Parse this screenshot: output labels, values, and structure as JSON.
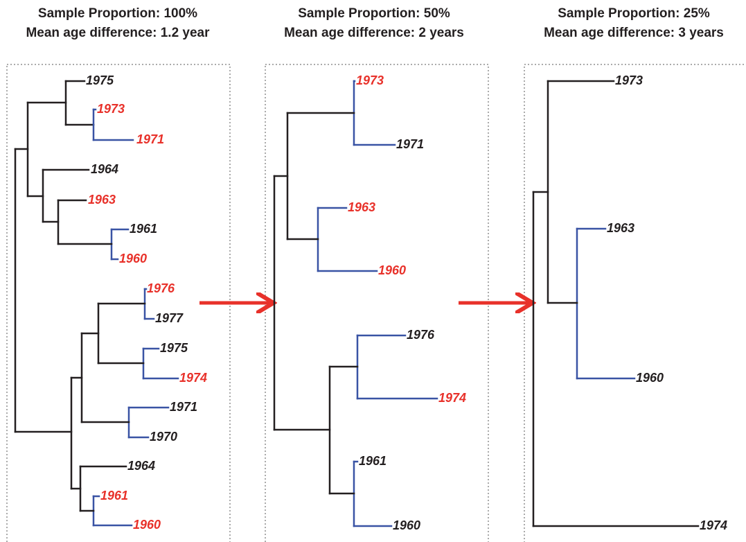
{
  "panels": [
    {
      "title": "Sample Proportion: 100%",
      "subtitle": "Mean age difference: 1.2 year",
      "leaves": [
        "1975",
        "1973",
        "1971",
        "1964",
        "1963",
        "1961",
        "1960",
        "1976",
        "1977",
        "1975",
        "1974",
        "1971",
        "1970",
        "1964",
        "1961",
        "1960"
      ]
    },
    {
      "title": "Sample Proportion: 50%",
      "subtitle": "Mean age difference: 2 years",
      "leaves": [
        "1973",
        "1971",
        "1963",
        "1960",
        "1976",
        "1974",
        "1961",
        "1960"
      ]
    },
    {
      "title": "Sample Proportion: 25%",
      "subtitle": "Mean age difference: 3 years",
      "leaves": [
        "1973",
        "1963",
        "1960",
        "1974"
      ]
    }
  ]
}
